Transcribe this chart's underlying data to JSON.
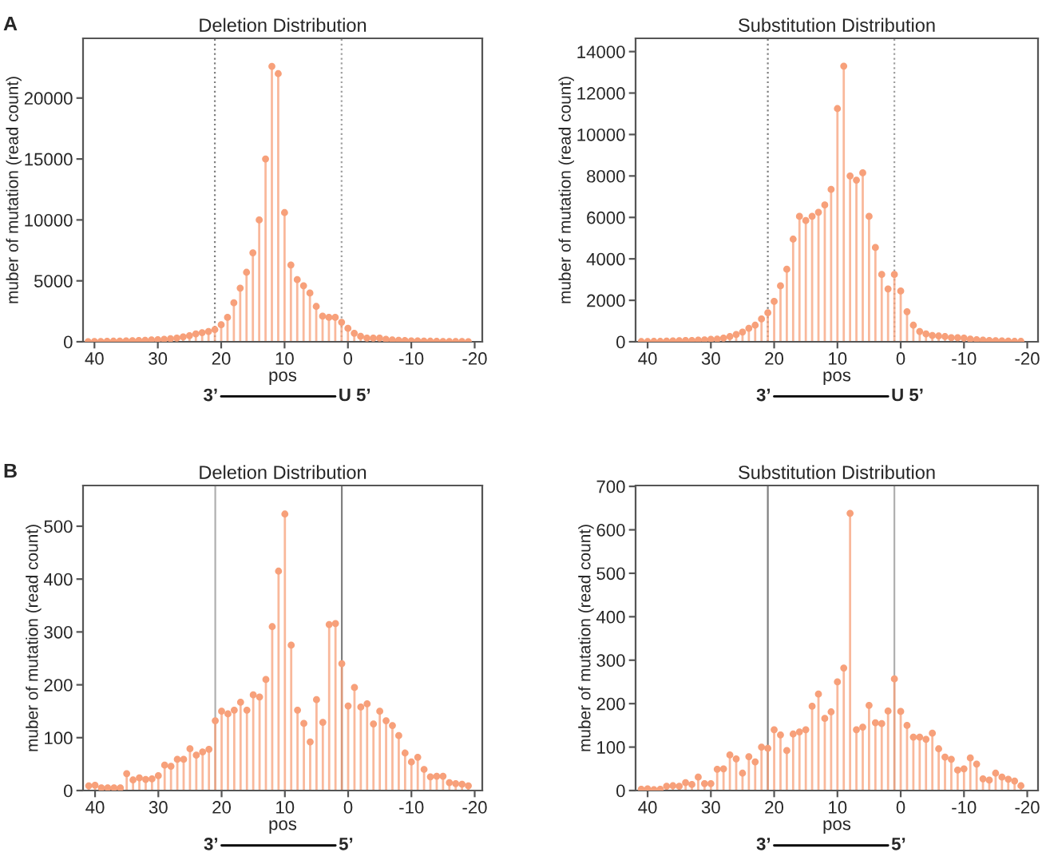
{
  "chart_data": [
    {
      "type": "lollipop",
      "title": "Deletion Distribution",
      "xlabel": "pos",
      "ylabel": "muber of mutation (read count)",
      "annotations": [
        "A",
        "3’",
        "U 5’"
      ],
      "x": [
        41,
        40,
        39,
        38,
        37,
        36,
        35,
        34,
        33,
        32,
        31,
        30,
        29,
        28,
        27,
        26,
        25,
        24,
        23,
        22,
        21,
        20,
        19,
        18,
        17,
        16,
        15,
        14,
        13,
        12,
        11,
        10,
        9,
        8,
        7,
        6,
        5,
        4,
        3,
        2,
        1,
        0,
        -1,
        -2,
        -3,
        -4,
        -5,
        -6,
        -7,
        -8,
        -9,
        -10,
        -11,
        -12,
        -13,
        -14,
        -15,
        -16,
        -17,
        -18,
        -19
      ],
      "series": [
        {
          "color": "#f7a07a",
          "values": [
            10,
            20,
            30,
            40,
            50,
            60,
            70,
            90,
            100,
            120,
            150,
            170,
            200,
            250,
            300,
            400,
            500,
            650,
            750,
            850,
            1000,
            1400,
            2000,
            3200,
            4400,
            5700,
            7300,
            10000,
            15000,
            22600,
            22000,
            10600,
            6300,
            5100,
            4600,
            4000,
            2900,
            2100,
            2000,
            2000,
            1600,
            1100,
            700,
            450,
            300,
            300,
            300,
            200,
            150,
            120,
            100,
            80,
            70,
            60,
            50,
            40,
            30,
            30,
            20,
            20,
            10
          ]
        }
      ],
      "xlim": [
        41.8,
        -21.2
      ],
      "xticks": [
        40,
        30,
        20,
        10,
        0,
        -10,
        -20
      ],
      "ylim": [
        0,
        24900
      ],
      "yticks": [
        0,
        5000,
        10000,
        15000,
        20000
      ],
      "ref_lines": [
        {
          "axis": "x",
          "value": 21,
          "color": "#808080",
          "line_style": "dotted"
        },
        {
          "axis": "x",
          "value": 1,
          "color": "#a0a0a0",
          "line_style": "dotted"
        }
      ],
      "marker": "circle",
      "grid": false,
      "legend": false
    },
    {
      "type": "lollipop",
      "title": "Substitution Distribution",
      "xlabel": "pos",
      "ylabel": "muber of mutation (read count)",
      "annotations": [
        "3’",
        "U 5’"
      ],
      "x": [
        41,
        40,
        39,
        38,
        37,
        36,
        35,
        34,
        33,
        32,
        31,
        30,
        29,
        28,
        27,
        26,
        25,
        24,
        23,
        22,
        21,
        20,
        19,
        18,
        17,
        16,
        15,
        14,
        13,
        12,
        11,
        10,
        9,
        8,
        7,
        6,
        5,
        4,
        3,
        2,
        1,
        0,
        -1,
        -2,
        -3,
        -4,
        -5,
        -6,
        -7,
        -8,
        -9,
        -10,
        -11,
        -12,
        -13,
        -14,
        -15,
        -16,
        -17,
        -18,
        -19
      ],
      "series": [
        {
          "color": "#f7a07a",
          "values": [
            10,
            10,
            20,
            20,
            30,
            40,
            50,
            60,
            60,
            80,
            90,
            120,
            130,
            180,
            250,
            350,
            470,
            650,
            800,
            1100,
            1400,
            1950,
            2700,
            3500,
            4950,
            6050,
            5850,
            6050,
            6250,
            6600,
            7350,
            11250,
            13300,
            8000,
            7800,
            8150,
            6050,
            4550,
            3250,
            2550,
            3250,
            2450,
            1450,
            800,
            500,
            380,
            300,
            280,
            250,
            200,
            200,
            180,
            130,
            100,
            80,
            60,
            50,
            40,
            30,
            20,
            20
          ]
        }
      ],
      "xlim": [
        41.9,
        -21.7
      ],
      "xticks": [
        40,
        30,
        20,
        10,
        0,
        -10,
        -20
      ],
      "ylim": [
        0,
        14640
      ],
      "yticks": [
        0,
        2000,
        4000,
        6000,
        8000,
        10000,
        12000,
        14000
      ],
      "ref_lines": [
        {
          "axis": "x",
          "value": 21,
          "color": "#808080",
          "line_style": "dotted"
        },
        {
          "axis": "x",
          "value": 1,
          "color": "#a0a0a0",
          "line_style": "dotted"
        }
      ],
      "marker": "circle",
      "grid": false,
      "legend": false
    },
    {
      "type": "lollipop",
      "title": "Deletion Distribution",
      "xlabel": "pos",
      "ylabel": "muber of mutation (read count)",
      "annotations": [
        "B",
        "3’",
        "5’"
      ],
      "x": [
        41,
        40,
        39,
        38,
        37,
        36,
        35,
        34,
        33,
        32,
        31,
        30,
        29,
        28,
        27,
        26,
        25,
        24,
        23,
        22,
        21,
        20,
        19,
        18,
        17,
        16,
        15,
        14,
        13,
        12,
        11,
        10,
        9,
        8,
        7,
        6,
        5,
        4,
        3,
        2,
        1,
        0,
        -1,
        -2,
        -3,
        -4,
        -5,
        -6,
        -7,
        -8,
        -9,
        -10,
        -11,
        -12,
        -13,
        -14,
        -15,
        -16,
        -17,
        -18,
        -19
      ],
      "series": [
        {
          "color": "#f7a07a",
          "values": [
            9,
            10,
            5,
            5,
            5,
            5,
            32,
            20,
            24,
            21,
            22,
            28,
            48,
            46,
            59,
            59,
            79,
            67,
            73,
            78,
            132,
            150,
            145,
            152,
            167,
            152,
            181,
            177,
            210,
            310,
            415,
            523,
            275,
            152,
            127,
            92,
            172,
            129,
            314,
            316,
            240,
            160,
            195,
            158,
            164,
            126,
            150,
            132,
            123,
            104,
            71,
            54,
            63,
            40,
            26,
            27,
            27,
            15,
            13,
            12,
            9
          ]
        }
      ],
      "xlim": [
        41.9,
        -21.2
      ],
      "xticks": [
        40,
        30,
        20,
        10,
        0,
        -10,
        -20
      ],
      "ylim": [
        0,
        577
      ],
      "yticks": [
        0,
        100,
        200,
        300,
        400,
        500
      ],
      "ref_lines": [
        {
          "axis": "x",
          "value": 21,
          "color": "#b0b0b0",
          "line_style": "solid"
        },
        {
          "axis": "x",
          "value": 1,
          "color": "#808080",
          "line_style": "solid"
        }
      ],
      "marker": "circle",
      "grid": false,
      "legend": false
    },
    {
      "type": "lollipop",
      "title": "Substitution Distribution",
      "xlabel": "pos",
      "ylabel": "muber of mutation (read count)",
      "annotations": [
        "3’",
        "5’"
      ],
      "x": [
        41,
        40,
        39,
        38,
        37,
        36,
        35,
        34,
        33,
        32,
        31,
        30,
        29,
        28,
        27,
        26,
        25,
        24,
        23,
        22,
        21,
        20,
        19,
        18,
        17,
        16,
        15,
        14,
        13,
        12,
        11,
        10,
        9,
        8,
        7,
        6,
        5,
        4,
        3,
        2,
        1,
        0,
        -1,
        -2,
        -3,
        -4,
        -5,
        -6,
        -7,
        -8,
        -9,
        -10,
        -11,
        -12,
        -13,
        -14,
        -15,
        -16,
        -17,
        -18,
        -19
      ],
      "series": [
        {
          "color": "#f7a07a",
          "values": [
            3,
            4,
            2,
            3,
            10,
            11,
            10,
            18,
            14,
            31,
            16,
            16,
            49,
            50,
            82,
            73,
            40,
            78,
            66,
            100,
            97,
            140,
            128,
            92,
            130,
            135,
            140,
            194,
            222,
            166,
            181,
            250,
            282,
            638,
            140,
            146,
            196,
            156,
            154,
            183,
            257,
            182,
            150,
            123,
            123,
            118,
            132,
            96,
            77,
            72,
            47,
            50,
            75,
            61,
            27,
            24,
            40,
            31,
            26,
            22,
            11
          ]
        }
      ],
      "xlim": [
        41.9,
        -21.7
      ],
      "xticks": [
        40,
        30,
        20,
        10,
        0,
        -10,
        -20
      ],
      "ylim": [
        0,
        702
      ],
      "yticks": [
        0,
        100,
        200,
        300,
        400,
        500,
        600,
        700
      ],
      "ref_lines": [
        {
          "axis": "x",
          "value": 21,
          "color": "#808080",
          "line_style": "solid"
        },
        {
          "axis": "x",
          "value": 1,
          "color": "#b0b0b0",
          "line_style": "solid"
        }
      ],
      "marker": "circle",
      "grid": false,
      "legend": false
    }
  ]
}
